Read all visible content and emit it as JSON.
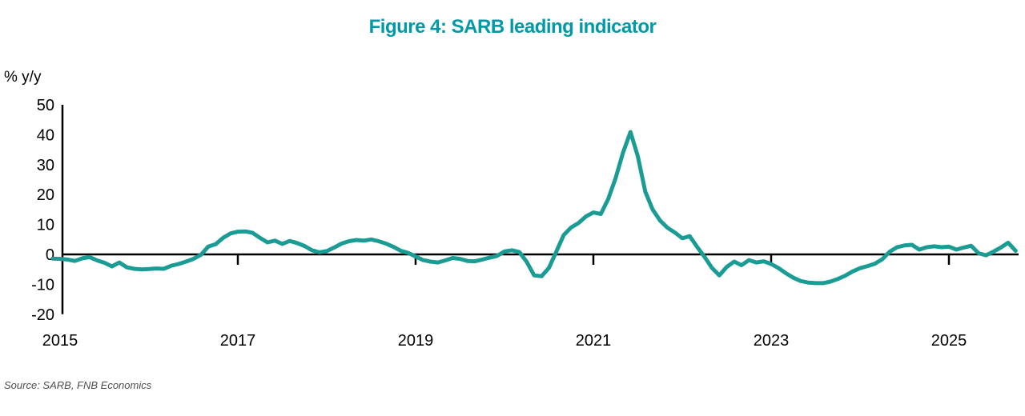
{
  "title": "Figure 4: SARB leading indicator",
  "unit_label": "% y/y",
  "source": "Source: SARB, FNB Economics",
  "colors": {
    "title_accent": "#0099a8",
    "line": "#1a9c94",
    "axis": "#000000",
    "source_text": "#4d4d4d"
  },
  "chart_data": {
    "type": "line",
    "title": "Figure 4: SARB leading indicator",
    "xlabel": "",
    "ylabel": "% y/y",
    "series_name": "SARB leading indicator, % y/y",
    "legend": "none",
    "grid": false,
    "ylim": [
      -20,
      50
    ],
    "yticks": [
      50,
      40,
      30,
      20,
      10,
      0,
      -10,
      -20
    ],
    "xticks": [
      2015,
      2017,
      2019,
      2021,
      2023,
      2025
    ],
    "x_start": 2014.9167,
    "x_step_years": 0.0833333,
    "values": [
      -1.4,
      -1.5,
      -1.7,
      -2.2,
      -1.3,
      -0.9,
      -2.0,
      -2.8,
      -4.0,
      -2.7,
      -4.3,
      -4.8,
      -5.0,
      -4.9,
      -4.7,
      -4.8,
      -3.8,
      -3.2,
      -2.4,
      -1.5,
      -0.2,
      2.6,
      3.4,
      5.5,
      7.0,
      7.6,
      7.7,
      7.2,
      5.5,
      4.0,
      4.6,
      3.5,
      4.5,
      3.8,
      2.8,
      1.4,
      0.7,
      1.1,
      2.3,
      3.6,
      4.4,
      4.8,
      4.6,
      5.0,
      4.4,
      3.6,
      2.5,
      1.2,
      0.5,
      -0.7,
      -1.9,
      -2.4,
      -2.7,
      -2.0,
      -1.2,
      -1.5,
      -2.2,
      -2.3,
      -1.7,
      -1.1,
      -0.5,
      1.0,
      1.4,
      0.8,
      -2.5,
      -7.0,
      -7.3,
      -4.5,
      1.0,
      6.5,
      9.0,
      10.5,
      12.7,
      14.0,
      13.5,
      18.5,
      25.5,
      34.0,
      40.9,
      32.8,
      21.0,
      15.0,
      11.3,
      8.9,
      7.3,
      5.4,
      6.1,
      2.5,
      -0.8,
      -4.5,
      -7.0,
      -4.2,
      -2.4,
      -3.6,
      -1.9,
      -2.7,
      -2.3,
      -3.2,
      -4.6,
      -6.3,
      -7.8,
      -8.9,
      -9.4,
      -9.6,
      -9.6,
      -9.1,
      -8.2,
      -7.1,
      -5.7,
      -4.6,
      -3.9,
      -3.1,
      -1.6,
      0.9,
      2.4,
      3.0,
      3.2,
      1.6,
      2.4,
      2.7,
      2.4,
      2.6,
      1.6,
      2.3,
      2.9,
      0.4,
      -0.3,
      0.9,
      2.3,
      3.9,
      1.2
    ]
  }
}
